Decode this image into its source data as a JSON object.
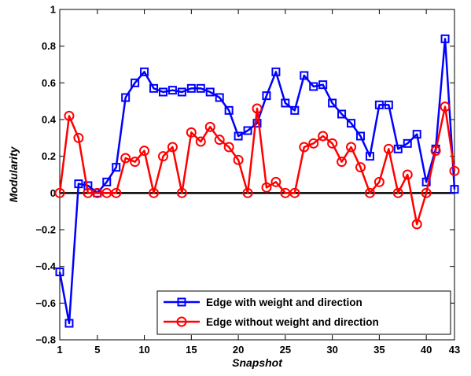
{
  "chart_data": {
    "type": "line",
    "xlabel": "Snapshot",
    "ylabel": "Modularity",
    "xlim": [
      1,
      43
    ],
    "ylim": [
      -0.8,
      1
    ],
    "xticks": [
      1,
      5,
      10,
      15,
      20,
      25,
      30,
      35,
      40,
      43
    ],
    "xtick_labels": [
      "1",
      "5",
      "10",
      "15",
      "20",
      "25",
      "30",
      "35",
      "40",
      "43"
    ],
    "yticks": [
      -0.8,
      -0.6,
      -0.4,
      -0.2,
      0,
      0.2,
      0.4,
      0.6,
      0.8,
      1
    ],
    "ytick_labels": [
      "−0.8",
      "−0.6",
      "−0.4",
      "−0.2",
      "0",
      "0.2",
      "0.4",
      "0.6",
      "0.8",
      "1"
    ],
    "grid": false,
    "legend_position": "bottom-right",
    "reference_line": 0,
    "x": [
      1,
      2,
      3,
      4,
      5,
      6,
      7,
      8,
      9,
      10,
      11,
      12,
      13,
      14,
      15,
      16,
      17,
      18,
      19,
      20,
      21,
      22,
      23,
      24,
      25,
      26,
      27,
      28,
      29,
      30,
      31,
      32,
      33,
      34,
      35,
      36,
      37,
      38,
      39,
      40,
      41,
      42,
      43
    ],
    "series": [
      {
        "name": "Edge with weight and direction",
        "color": "#0000ff",
        "marker": "square",
        "values": [
          -0.43,
          -0.71,
          0.05,
          0.04,
          0.0,
          0.06,
          0.14,
          0.52,
          0.6,
          0.66,
          0.57,
          0.55,
          0.56,
          0.55,
          0.57,
          0.57,
          0.55,
          0.52,
          0.45,
          0.31,
          0.34,
          0.38,
          0.53,
          0.66,
          0.49,
          0.45,
          0.64,
          0.58,
          0.59,
          0.49,
          0.43,
          0.38,
          0.31,
          0.2,
          0.48,
          0.48,
          0.24,
          0.27,
          0.32,
          0.06,
          0.24,
          0.84,
          0.02
        ]
      },
      {
        "name": "Edge without weight and direction",
        "color": "#ff0000",
        "marker": "circle",
        "values": [
          0.0,
          0.42,
          0.3,
          0.0,
          0.0,
          0.0,
          0.0,
          0.19,
          0.17,
          0.23,
          0.0,
          0.2,
          0.25,
          0.0,
          0.33,
          0.28,
          0.36,
          0.29,
          0.25,
          0.18,
          0.0,
          0.46,
          0.03,
          0.06,
          0.0,
          0.0,
          0.25,
          0.27,
          0.31,
          0.27,
          0.17,
          0.25,
          0.14,
          0.0,
          0.06,
          0.24,
          0.0,
          0.1,
          -0.17,
          0.0,
          0.23,
          0.47,
          0.12
        ]
      }
    ]
  }
}
